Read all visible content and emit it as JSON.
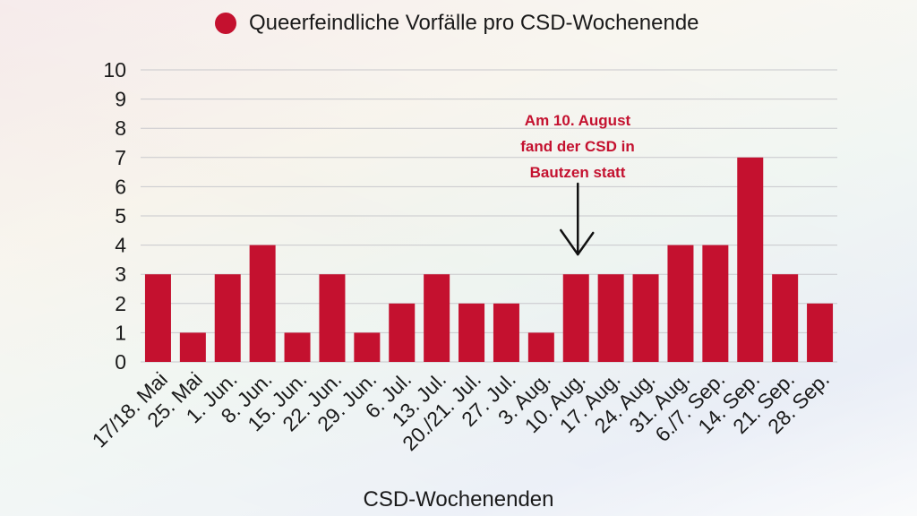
{
  "colors": {
    "bar": "#c4112f",
    "grid": "#c8c8cc",
    "annotation": "#c4112f",
    "text": "#1a1a1a"
  },
  "chart_data": {
    "type": "bar",
    "title": "",
    "xlabel": "CSD-Wochenenden",
    "ylabel": "",
    "ylim": [
      0,
      10
    ],
    "yticks": [
      0,
      1,
      2,
      3,
      4,
      5,
      6,
      7,
      8,
      9,
      10
    ],
    "grid": true,
    "legend_position": "top",
    "categories": [
      "17/18. Mai",
      "25. Mai",
      "1. Jun.",
      "8. Jun.",
      "15. Jun.",
      "22. Jun.",
      "29. Jun.",
      "6. Jul.",
      "13. Jul.",
      "20./21. Jul.",
      "27. Jul.",
      "3. Aug.",
      "10. Aug.",
      "17. Aug.",
      "24. Aug.",
      "31. Aug.",
      "6./7. Sep.",
      "14. Sep.",
      "21. Sep.",
      "28. Sep."
    ],
    "series": [
      {
        "name": "Queerfeindliche Vorfälle pro CSD-Wochenende",
        "values": [
          3,
          1,
          3,
          4,
          1,
          3,
          1,
          2,
          3,
          2,
          2,
          1,
          3,
          3,
          3,
          4,
          4,
          7,
          3,
          2
        ]
      }
    ],
    "annotation": {
      "category": "10. Aug.",
      "lines": [
        "Am 10. August",
        "fand der CSD in",
        "Bautzen statt"
      ]
    }
  }
}
